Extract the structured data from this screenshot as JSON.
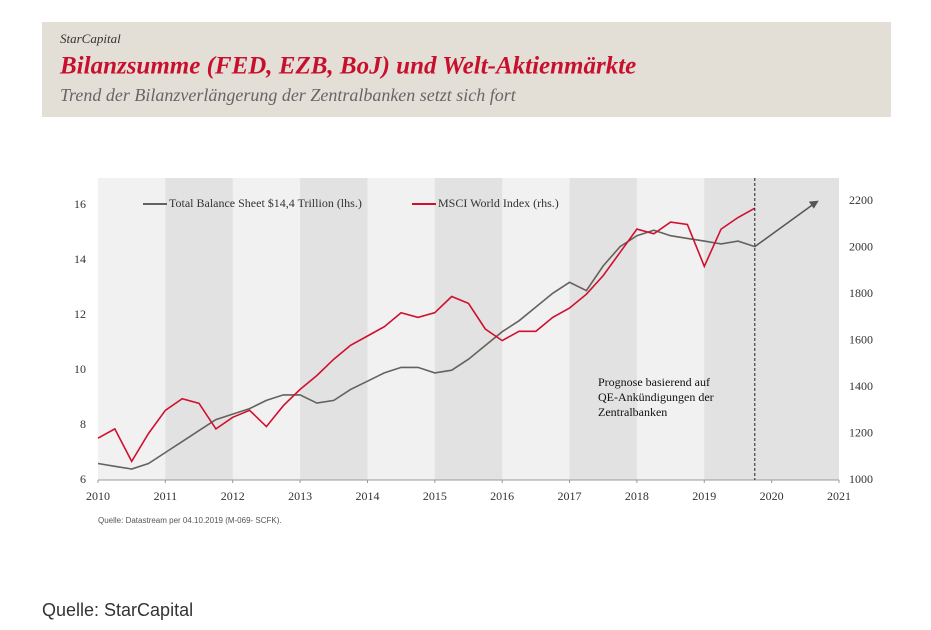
{
  "chart_data": {
    "type": "line",
    "brand": "StarCapital",
    "title": "Bilanzsumme (FED, EZB, BoJ) und Welt-Aktienmärkte",
    "subtitle": "Trend der Bilanzverlängerung der Zentralbanken setzt sich fort",
    "source": "Quelle: Datastream per 04.10.2019 (M-069- SCFK).",
    "footer": "Quelle: StarCapital",
    "annotation": [
      "Prognose basierend auf",
      "QE-Ankündigungen der",
      "Zentralbanken"
    ],
    "x": [
      2010,
      2010.25,
      2010.5,
      2010.75,
      2011,
      2011.25,
      2011.5,
      2011.75,
      2012,
      2012.25,
      2012.5,
      2012.75,
      2013,
      2013.25,
      2013.5,
      2013.75,
      2014,
      2014.25,
      2014.5,
      2014.75,
      2015,
      2015.25,
      2015.5,
      2015.75,
      2016,
      2016.25,
      2016.5,
      2016.75,
      2017,
      2017.25,
      2017.5,
      2017.75,
      2018,
      2018.25,
      2018.5,
      2018.75,
      2019,
      2019.25,
      2019.5,
      2019.75
    ],
    "series": [
      {
        "name": "Total Balance Sheet $14,4 Trillion (lhs.)",
        "color": "#66615c",
        "axis": "y",
        "values": [
          6.6,
          6.5,
          6.4,
          6.6,
          7.0,
          7.4,
          7.8,
          8.2,
          8.4,
          8.6,
          8.9,
          9.1,
          9.1,
          8.8,
          8.9,
          9.3,
          9.6,
          9.9,
          10.1,
          10.1,
          9.9,
          10.0,
          10.4,
          10.9,
          11.4,
          11.8,
          12.3,
          12.8,
          13.2,
          12.9,
          13.8,
          14.5,
          14.9,
          15.1,
          14.9,
          14.8,
          14.7,
          14.6,
          14.7,
          14.5
        ]
      },
      {
        "name": "MSCI World Index (rhs.)",
        "color": "#d0102e",
        "axis": "y2",
        "values": [
          1180,
          1220,
          1080,
          1200,
          1300,
          1350,
          1330,
          1220,
          1270,
          1300,
          1230,
          1320,
          1390,
          1450,
          1520,
          1580,
          1620,
          1660,
          1720,
          1700,
          1720,
          1790,
          1760,
          1650,
          1600,
          1640,
          1640,
          1700,
          1740,
          1800,
          1880,
          1980,
          2080,
          2060,
          2110,
          2100,
          1920,
          2080,
          2130,
          2170
        ]
      }
    ],
    "xlim": [
      2010,
      2021
    ],
    "xticks": [
      2010,
      2011,
      2012,
      2013,
      2014,
      2015,
      2016,
      2017,
      2018,
      2019,
      2020,
      2021
    ],
    "ylim": [
      6,
      17
    ],
    "yticks": [
      6,
      8,
      10,
      12,
      14,
      16
    ],
    "y2lim": [
      1000,
      2300
    ],
    "y2ticks": [
      1000,
      1200,
      1400,
      1600,
      1800,
      2000,
      2200
    ]
  }
}
